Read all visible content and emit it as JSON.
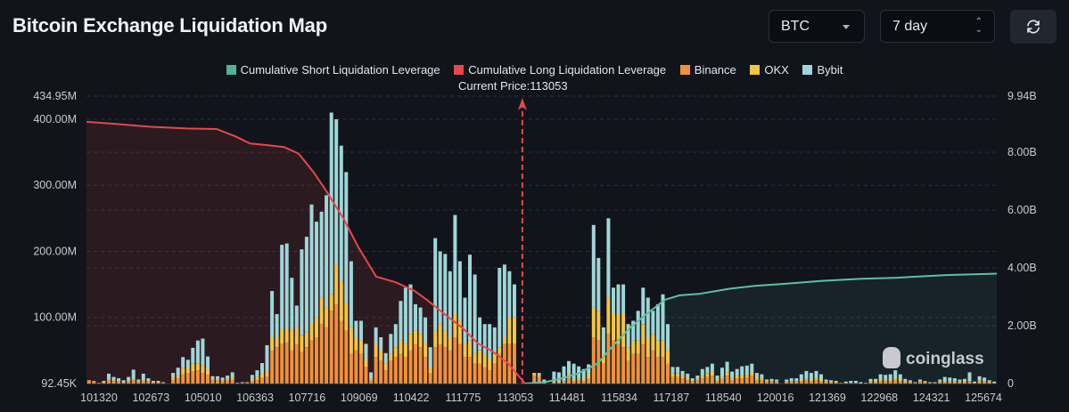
{
  "header": {
    "title": "Bitcoin Exchange Liquidation Map",
    "coin_select": {
      "value": "BTC"
    },
    "period_select": {
      "value": "7 day"
    },
    "refresh_icon": "refresh-icon"
  },
  "legend": [
    {
      "label": "Cumulative Short Liquidation Leverage",
      "color": "#4fb39a"
    },
    {
      "label": "Cumulative Long Liquidation Leverage",
      "color": "#e5484d"
    },
    {
      "label": "Binance",
      "color": "#f0913a"
    },
    {
      "label": "OKX",
      "color": "#f4c542"
    },
    {
      "label": "Bybit",
      "color": "#9fd6d8"
    }
  ],
  "current_price_label": "Current Price:113053",
  "watermark": "coinglass",
  "chart_data": {
    "type": "bar",
    "title": "Bitcoin Exchange Liquidation Map",
    "current_price": 113053,
    "x_tick_labels": [
      "101320",
      "102673",
      "105010",
      "106363",
      "107716",
      "109069",
      "110422",
      "111775",
      "113053",
      "114481",
      "115834",
      "117187",
      "118540",
      "120016",
      "121369",
      "122968",
      "124321",
      "125674"
    ],
    "y_left": {
      "tick_labels": [
        "92.45K",
        "100.00M",
        "200.00M",
        "300.00M",
        "400.00M",
        "434.95M"
      ],
      "range_millions": [
        0,
        434.95
      ]
    },
    "y_right": {
      "tick_labels": [
        "0",
        "2.00B",
        "4.00B",
        "6.00B",
        "8.00B",
        "9.94B"
      ],
      "range_billions": [
        0,
        9.94
      ]
    },
    "grid": true,
    "legend_position": "top-center",
    "bar_series_note": "stacked bars in millions USD: [binance, okx, bybit]",
    "bars": [
      [
        4,
        1,
        0
      ],
      [
        3,
        0,
        1
      ],
      [
        1,
        0,
        0
      ],
      [
        2,
        0,
        2
      ],
      [
        5,
        2,
        8
      ],
      [
        4,
        1,
        5
      ],
      [
        3,
        1,
        4
      ],
      [
        2,
        0,
        3
      ],
      [
        3,
        1,
        6
      ],
      [
        5,
        2,
        14
      ],
      [
        2,
        1,
        3
      ],
      [
        3,
        2,
        10
      ],
      [
        3,
        1,
        4
      ],
      [
        2,
        0,
        2
      ],
      [
        2,
        0,
        2
      ],
      [
        1,
        0,
        1
      ],
      [
        0,
        0,
        0
      ],
      [
        6,
        3,
        7
      ],
      [
        8,
        4,
        12
      ],
      [
        14,
        10,
        16
      ],
      [
        15,
        8,
        13
      ],
      [
        18,
        12,
        24
      ],
      [
        20,
        10,
        35
      ],
      [
        16,
        12,
        40
      ],
      [
        13,
        8,
        20
      ],
      [
        5,
        2,
        4
      ],
      [
        5,
        2,
        4
      ],
      [
        4,
        1,
        4
      ],
      [
        5,
        2,
        5
      ],
      [
        6,
        3,
        8
      ],
      [
        0,
        0,
        1
      ],
      [
        1,
        0,
        1
      ],
      [
        1,
        0,
        1
      ],
      [
        4,
        3,
        6
      ],
      [
        6,
        4,
        10
      ],
      [
        9,
        6,
        16
      ],
      [
        10,
        8,
        40
      ],
      [
        50,
        20,
        70
      ],
      [
        55,
        15,
        35
      ],
      [
        60,
        22,
        128
      ],
      [
        62,
        22,
        128
      ],
      [
        50,
        30,
        80
      ],
      [
        60,
        25,
        33
      ],
      [
        48,
        25,
        130
      ],
      [
        55,
        22,
        145
      ],
      [
        66,
        25,
        180
      ],
      [
        70,
        30,
        145
      ],
      [
        90,
        40,
        130
      ],
      [
        85,
        30,
        170
      ],
      [
        110,
        25,
        275
      ],
      [
        120,
        60,
        220
      ],
      [
        95,
        60,
        205
      ],
      [
        80,
        40,
        200
      ],
      [
        45,
        40,
        100
      ],
      [
        50,
        20,
        25
      ],
      [
        45,
        20,
        30
      ],
      [
        25,
        10,
        25
      ],
      [
        5,
        2,
        10
      ],
      [
        40,
        20,
        25
      ],
      [
        35,
        15,
        20
      ],
      [
        20,
        10,
        16
      ],
      [
        35,
        10,
        30
      ],
      [
        40,
        15,
        35
      ],
      [
        45,
        20,
        60
      ],
      [
        40,
        20,
        85
      ],
      [
        50,
        25,
        75
      ],
      [
        60,
        20,
        40
      ],
      [
        55,
        20,
        40
      ],
      [
        40,
        20,
        40
      ],
      [
        15,
        10,
        30
      ],
      [
        55,
        25,
        140
      ],
      [
        60,
        30,
        110
      ],
      [
        55,
        25,
        116
      ],
      [
        50,
        20,
        100
      ],
      [
        70,
        35,
        150
      ],
      [
        60,
        35,
        90
      ],
      [
        40,
        20,
        70
      ],
      [
        40,
        25,
        130
      ],
      [
        30,
        15,
        120
      ],
      [
        30,
        20,
        50
      ],
      [
        25,
        20,
        45
      ],
      [
        20,
        15,
        55
      ],
      [
        30,
        15,
        40
      ],
      [
        45,
        10,
        120
      ],
      [
        60,
        10,
        110
      ],
      [
        60,
        40,
        70
      ],
      [
        60,
        40,
        50
      ],
      [
        0,
        0,
        0
      ],
      [
        1,
        0,
        0
      ],
      [
        1,
        0,
        0
      ],
      [
        12,
        4,
        0
      ],
      [
        10,
        3,
        3
      ],
      [
        2,
        1,
        3
      ],
      [
        0,
        0,
        0
      ],
      [
        2,
        0,
        16
      ],
      [
        2,
        0,
        15
      ],
      [
        3,
        1,
        22
      ],
      [
        8,
        8,
        18
      ],
      [
        4,
        2,
        24
      ],
      [
        5,
        3,
        18
      ],
      [
        4,
        2,
        16
      ],
      [
        7,
        8,
        14
      ],
      [
        70,
        45,
        125
      ],
      [
        65,
        45,
        80
      ],
      [
        30,
        15,
        40
      ],
      [
        75,
        55,
        120
      ],
      [
        65,
        40,
        40
      ],
      [
        60,
        45,
        45
      ],
      [
        55,
        50,
        45
      ],
      [
        35,
        20,
        35
      ],
      [
        45,
        20,
        30
      ],
      [
        45,
        20,
        45
      ],
      [
        60,
        30,
        55
      ],
      [
        40,
        30,
        60
      ],
      [
        50,
        25,
        35
      ],
      [
        40,
        25,
        55
      ],
      [
        40,
        25,
        70
      ],
      [
        30,
        20,
        40
      ],
      [
        10,
        5,
        10
      ],
      [
        10,
        5,
        10
      ],
      [
        8,
        4,
        7
      ],
      [
        6,
        3,
        6
      ],
      [
        3,
        1,
        4
      ],
      [
        5,
        2,
        5
      ],
      [
        8,
        4,
        10
      ],
      [
        10,
        5,
        10
      ],
      [
        12,
        6,
        12
      ],
      [
        4,
        2,
        6
      ],
      [
        7,
        3,
        14
      ],
      [
        12,
        5,
        16
      ],
      [
        5,
        3,
        10
      ],
      [
        8,
        4,
        10
      ],
      [
        8,
        4,
        14
      ],
      [
        9,
        4,
        14
      ],
      [
        12,
        5,
        13
      ],
      [
        5,
        3,
        8
      ],
      [
        5,
        3,
        6
      ],
      [
        3,
        1,
        2
      ],
      [
        3,
        1,
        3
      ],
      [
        3,
        0,
        3
      ],
      [
        0,
        0,
        0
      ],
      [
        2,
        1,
        3
      ],
      [
        3,
        1,
        4
      ],
      [
        3,
        1,
        4
      ],
      [
        4,
        2,
        8
      ],
      [
        5,
        2,
        12
      ],
      [
        4,
        2,
        10
      ],
      [
        6,
        3,
        10
      ],
      [
        4,
        2,
        8
      ],
      [
        2,
        1,
        3
      ],
      [
        2,
        1,
        2
      ],
      [
        2,
        0,
        2
      ],
      [
        1,
        0,
        0
      ],
      [
        1,
        0,
        2
      ],
      [
        1,
        0,
        3
      ],
      [
        1,
        0,
        3
      ],
      [
        0,
        0,
        2
      ],
      [
        0,
        0,
        1
      ],
      [
        2,
        1,
        4
      ],
      [
        2,
        1,
        4
      ],
      [
        4,
        2,
        8
      ],
      [
        3,
        2,
        8
      ],
      [
        4,
        2,
        8
      ],
      [
        5,
        3,
        12
      ],
      [
        4,
        2,
        8
      ],
      [
        2,
        1,
        4
      ],
      [
        2,
        1,
        2
      ],
      [
        1,
        0,
        1
      ],
      [
        3,
        1,
        2
      ],
      [
        2,
        1,
        1
      ],
      [
        1,
        0,
        1
      ],
      [
        1,
        0,
        1
      ],
      [
        2,
        1,
        3
      ],
      [
        2,
        1,
        7
      ],
      [
        2,
        1,
        6
      ],
      [
        2,
        1,
        5
      ],
      [
        2,
        1,
        3
      ],
      [
        2,
        1,
        4
      ],
      [
        3,
        1,
        13
      ],
      [
        1,
        0,
        2
      ],
      [
        3,
        2,
        6
      ],
      [
        3,
        1,
        5
      ],
      [
        2,
        1,
        2
      ],
      [
        1,
        0,
        2
      ]
    ],
    "cumulative_long_billions": [
      [
        101320,
        9.05
      ],
      [
        102100,
        8.98
      ],
      [
        103000,
        8.88
      ],
      [
        104000,
        8.82
      ],
      [
        104800,
        8.8
      ],
      [
        105300,
        8.55
      ],
      [
        105700,
        8.3
      ],
      [
        106100,
        8.25
      ],
      [
        106600,
        8.18
      ],
      [
        107000,
        7.95
      ],
      [
        107400,
        7.3
      ],
      [
        107716,
        6.7
      ],
      [
        108200,
        5.7
      ],
      [
        108600,
        4.7
      ],
      [
        109069,
        3.7
      ],
      [
        109600,
        3.5
      ],
      [
        110100,
        3.2
      ],
      [
        110422,
        2.9
      ],
      [
        110900,
        2.4
      ],
      [
        111400,
        1.9
      ],
      [
        111775,
        1.4
      ],
      [
        112200,
        1.1
      ],
      [
        112600,
        0.7
      ],
      [
        113053,
        0.0
      ]
    ],
    "cumulative_short_billions": [
      [
        113053,
        0.0
      ],
      [
        113600,
        0.05
      ],
      [
        114100,
        0.2
      ],
      [
        114481,
        0.35
      ],
      [
        115000,
        0.7
      ],
      [
        115400,
        1.3
      ],
      [
        115834,
        1.9
      ],
      [
        116300,
        2.4
      ],
      [
        116800,
        2.9
      ],
      [
        117187,
        3.05
      ],
      [
        117700,
        3.1
      ],
      [
        118540,
        3.28
      ],
      [
        119200,
        3.38
      ],
      [
        120016,
        3.45
      ],
      [
        121000,
        3.55
      ],
      [
        122000,
        3.62
      ],
      [
        123000,
        3.66
      ],
      [
        124321,
        3.75
      ],
      [
        125674,
        3.8
      ]
    ]
  }
}
